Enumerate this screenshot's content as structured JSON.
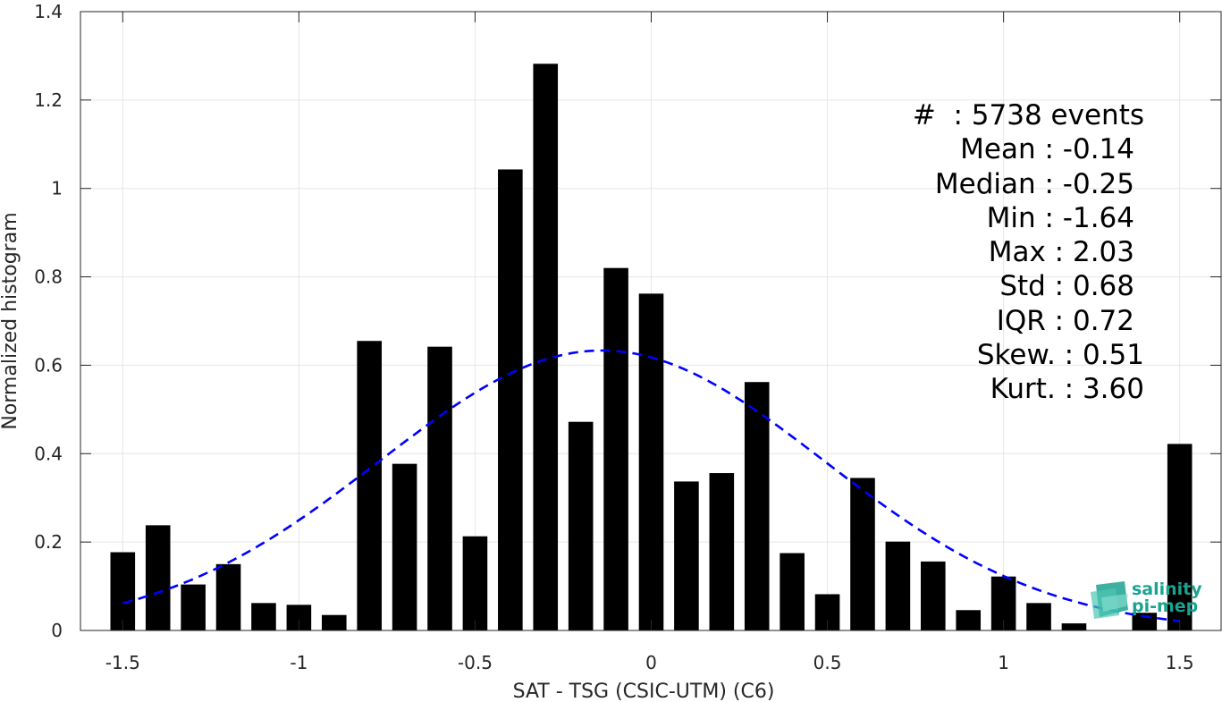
{
  "chart_data": {
    "type": "bar",
    "xlabel": "SAT - TSG (CSIC-UTM) (C6)",
    "ylabel": "Normalized histogram",
    "xlim": [
      -1.62,
      1.62
    ],
    "ylim": [
      0,
      1.4
    ],
    "grid": true,
    "xticks": [
      -1.5,
      -1,
      -0.5,
      0,
      0.5,
      1,
      1.5
    ],
    "xtick_labels": [
      "-1.5",
      "-1",
      "-0.5",
      "0",
      "0.5",
      "1",
      "1.5"
    ],
    "yticks": [
      0,
      0.2,
      0.4,
      0.6,
      0.8,
      1,
      1.2,
      1.4
    ],
    "ytick_labels": [
      "0",
      "0.2",
      "0.4",
      "0.6",
      "0.8",
      "1",
      "1.2",
      "1.4"
    ],
    "bar_width": 0.07,
    "bar_color": "#000000",
    "x": [
      -1.5,
      -1.4,
      -1.3,
      -1.2,
      -1.1,
      -1.0,
      -0.9,
      -0.8,
      -0.7,
      -0.6,
      -0.5,
      -0.4,
      -0.3,
      -0.2,
      -0.1,
      0.0,
      0.1,
      0.2,
      0.3,
      0.4,
      0.5,
      0.6,
      0.7,
      0.8,
      0.9,
      1.0,
      1.1,
      1.2,
      1.3,
      1.4,
      1.5
    ],
    "values": [
      0.177,
      0.238,
      0.104,
      0.15,
      0.062,
      0.058,
      0.035,
      0.655,
      0.377,
      0.642,
      0.213,
      1.043,
      1.282,
      0.472,
      0.82,
      0.762,
      0.337,
      0.356,
      0.562,
      0.175,
      0.082,
      0.345,
      0.201,
      0.156,
      0.046,
      0.122,
      0.062,
      0.016,
      0.0,
      0.04,
      0.422
    ],
    "fit_curve": {
      "type": "normal",
      "mean": -0.14,
      "std": 0.63,
      "color": "#0000ff",
      "x_range": [
        -1.5,
        1.5
      ]
    }
  },
  "stats": {
    "events": "#  : 5738 events",
    "mean": "Mean : -0.14",
    "median": "Median : -0.25",
    "min": "Min : -1.64",
    "max": "Max : 2.03",
    "std": "Std : 0.68",
    "iqr": "IQR : 0.72",
    "skew": "Skew. : 0.51",
    "kurt": "Kurt. : 3.60"
  },
  "logo": {
    "line1": "salinity",
    "line2": "pi-mep",
    "color": "#1aa38f"
  }
}
